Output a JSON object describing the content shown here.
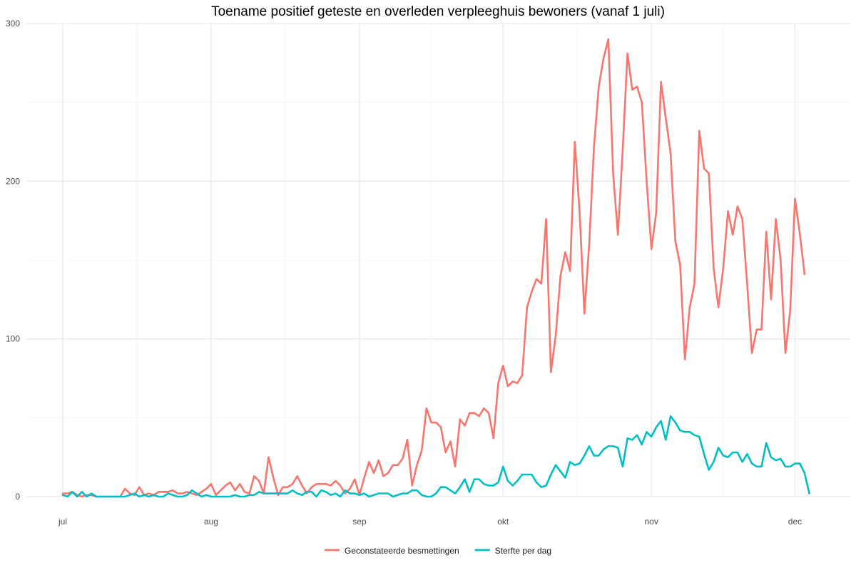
{
  "chart_data": {
    "type": "line",
    "title": "Toename positief geteste en overleden verpleeghuis bewoners (vanaf 1 juli)",
    "xlabel": "",
    "ylabel": "",
    "x_start": "2020-07-01",
    "x_end": "2020-12-04",
    "xlim": [
      "2020-07-01",
      "2020-12-06"
    ],
    "ylim": [
      0,
      300
    ],
    "y_ticks": [
      0,
      100,
      200,
      300
    ],
    "y_tick_labels": [
      "0",
      "100",
      "200",
      "300"
    ],
    "x_ticks": [
      "2020-07-01",
      "2020-08-01",
      "2020-09-01",
      "2020-10-01",
      "2020-11-01",
      "2020-12-01"
    ],
    "x_tick_labels": [
      "jul",
      "aug",
      "sep",
      "okt",
      "nov",
      "dec"
    ],
    "grid": true,
    "legend_position": "bottom",
    "series": [
      {
        "name": "Geconstateerde besmettingen",
        "color": "#F8766D",
        "values": [
          2,
          2,
          3,
          1,
          0,
          1,
          1,
          0,
          0,
          0,
          0,
          0,
          0,
          5,
          2,
          1,
          6,
          1,
          2,
          1,
          3,
          3,
          3,
          4,
          2,
          2,
          3,
          2,
          1,
          3,
          5,
          8,
          1,
          4,
          7,
          9,
          4,
          8,
          3,
          2,
          13,
          10,
          2,
          25,
          12,
          1,
          6,
          6,
          8,
          13,
          7,
          2,
          6,
          8,
          8,
          8,
          7,
          10,
          7,
          2,
          5,
          11,
          1,
          12,
          22,
          15,
          23,
          13,
          15,
          20,
          20,
          24,
          36,
          7,
          20,
          29,
          56,
          47,
          47,
          44,
          28,
          35,
          19,
          49,
          45,
          53,
          53,
          51,
          56,
          53,
          37,
          72,
          83,
          70,
          73,
          72,
          77,
          120,
          130,
          138,
          135,
          176,
          79,
          102,
          140,
          155,
          143,
          225,
          180,
          116,
          160,
          222,
          260,
          278,
          290,
          205,
          166,
          220,
          281,
          258,
          260,
          250,
          200,
          157,
          180,
          263,
          240,
          218,
          162,
          147,
          87,
          120,
          135,
          232,
          208,
          205,
          145,
          120,
          145,
          181,
          166,
          184,
          176,
          135,
          91,
          106,
          106,
          168,
          125,
          176,
          150,
          91,
          118,
          189,
          167,
          141
        ]
      },
      {
        "name": "Sterfte per dag",
        "color": "#00BFC4",
        "values": [
          1,
          0,
          3,
          0,
          3,
          0,
          2,
          0,
          0,
          0,
          0,
          0,
          0,
          0,
          1,
          2,
          0,
          1,
          0,
          1,
          0,
          0,
          2,
          1,
          0,
          0,
          1,
          4,
          2,
          0,
          1,
          0,
          0,
          0,
          0,
          0,
          1,
          0,
          0,
          1,
          1,
          3,
          2,
          2,
          2,
          2,
          2,
          2,
          4,
          2,
          1,
          3,
          3,
          0,
          4,
          3,
          1,
          2,
          0,
          4,
          2,
          2,
          1,
          2,
          0,
          1,
          2,
          2,
          2,
          0,
          1,
          2,
          2,
          4,
          4,
          1,
          0,
          0,
          2,
          6,
          6,
          4,
          2,
          6,
          11,
          3,
          11,
          11,
          8,
          7,
          7,
          9,
          19,
          10,
          7,
          10,
          14,
          14,
          14,
          9,
          6,
          7,
          14,
          20,
          16,
          12,
          22,
          20,
          21,
          26,
          32,
          26,
          26,
          30,
          32,
          32,
          31,
          19,
          37,
          36,
          39,
          33,
          41,
          38,
          44,
          48,
          36,
          51,
          47,
          42,
          41,
          41,
          39,
          38,
          27,
          17,
          22,
          31,
          26,
          25,
          28,
          28,
          22,
          27,
          21,
          19,
          19,
          34,
          25,
          23,
          24,
          19,
          19,
          21,
          21,
          15,
          2
        ]
      }
    ]
  }
}
